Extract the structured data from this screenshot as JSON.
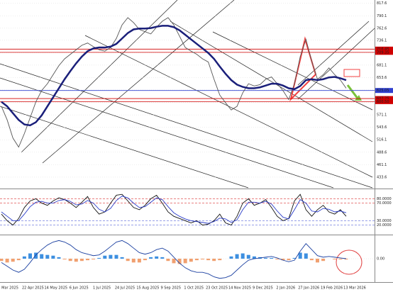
{
  "chart_data": [
    {
      "type": "line",
      "ylim": [
        410,
        825
      ],
      "yticks": [
        817.6,
        790.1,
        762.6,
        736.1,
        708.6,
        681.1,
        653.6,
        626.1,
        598.6,
        571.1,
        543.6,
        516.1,
        488.6,
        461.1,
        433.6
      ],
      "levels": [
        {
          "value": 716.45,
          "label": "716.45",
          "color": "#d00000"
        },
        {
          "value": 709.35,
          "label": "709.35",
          "color": "#d00000"
        },
        {
          "value": 625.05,
          "label": "625.05",
          "color": "#3040d0"
        },
        {
          "value": 607.25,
          "label": "607.25",
          "color": "#d00000"
        },
        {
          "value": 600.5,
          "label": "600.50",
          "color": "#d00000"
        }
      ],
      "series": [
        {
          "color": "#555555",
          "values": [
            590,
            560,
            520,
            500,
            530,
            565,
            600,
            625,
            640,
            660,
            680,
            695,
            705,
            715,
            725,
            730,
            722,
            715,
            712,
            720,
            740,
            770,
            786,
            775,
            760,
            755,
            750,
            765,
            778,
            786,
            770,
            745,
            720,
            712,
            705,
            695,
            688,
            650,
            615,
            598,
            582,
            590,
            620,
            640,
            635,
            638,
            650,
            655,
            640,
            625,
            605,
            640,
            700,
            738,
            690,
            650,
            660,
            675,
            660,
            648,
            630
          ]
        },
        {
          "color": "#1a1f7a",
          "values": [
            600,
            590,
            575,
            560,
            550,
            548,
            555,
            570,
            590,
            610,
            630,
            650,
            668,
            685,
            700,
            712,
            718,
            720,
            720,
            722,
            728,
            740,
            752,
            760,
            762,
            762,
            763,
            766,
            768,
            768,
            765,
            758,
            748,
            738,
            728,
            718,
            708,
            695,
            678,
            662,
            648,
            638,
            633,
            630,
            630,
            632,
            636,
            640,
            640,
            636,
            630,
            628,
            635,
            648,
            650,
            648,
            650,
            654,
            655,
            652,
            648
          ]
        }
      ]
    },
    {
      "type": "line",
      "ylim": [
        0,
        100
      ],
      "yticks": [
        {
          "value": 80,
          "label": "80.0000"
        },
        {
          "value": 70,
          "label": "70.0000"
        },
        {
          "value": 30,
          "label": "30.0000"
        },
        {
          "value": 20,
          "label": "20.0000"
        }
      ],
      "upper_color": "#d00000",
      "lower_color": "#3040d0",
      "series": [
        {
          "color": "#111111",
          "values": [
            45,
            30,
            20,
            35,
            60,
            75,
            80,
            70,
            65,
            75,
            82,
            78,
            70,
            60,
            72,
            85,
            60,
            45,
            50,
            70,
            88,
            90,
            75,
            60,
            55,
            65,
            80,
            88,
            70,
            50,
            40,
            35,
            30,
            25,
            30,
            20,
            22,
            30,
            45,
            25,
            20,
            40,
            70,
            80,
            65,
            70,
            78,
            60,
            40,
            30,
            35,
            75,
            90,
            55,
            40,
            55,
            65,
            50,
            45,
            55,
            40
          ]
        },
        {
          "color": "#2a3cc8",
          "values": [
            50,
            40,
            30,
            30,
            45,
            62,
            72,
            74,
            70,
            70,
            76,
            78,
            74,
            66,
            68,
            76,
            70,
            56,
            50,
            58,
            76,
            86,
            82,
            70,
            60,
            62,
            72,
            82,
            78,
            62,
            48,
            40,
            34,
            30,
            28,
            26,
            24,
            28,
            36,
            34,
            26,
            32,
            55,
            72,
            72,
            70,
            74,
            68,
            52,
            38,
            34,
            55,
            78,
            70,
            52,
            50,
            58,
            56,
            50,
            52,
            48
          ]
        }
      ]
    },
    {
      "type": "macd",
      "ylim": [
        -30,
        30
      ],
      "yticks": [
        {
          "value": 0,
          "label": "0.00"
        }
      ],
      "pos_color": "#3d8fe0",
      "neg_color": "#f0a070",
      "categories": [
        "Mar 2025",
        null,
        null,
        null,
        "22 Apr 2025",
        null,
        null,
        null,
        "14 May 2025",
        null,
        null,
        null,
        "6 Jun 2025",
        null,
        null,
        null,
        "1 Jul 2025",
        null,
        null,
        null,
        "24 Jul 2025",
        null,
        null,
        null,
        "15 Aug 2025",
        null,
        null,
        null,
        "9 Sep 2025",
        null,
        null,
        null,
        "1 Oct 2025",
        null,
        null,
        null,
        "23 Oct 2025",
        null,
        null,
        null,
        "14 Nov 2025",
        null,
        null,
        null,
        "9 Dec 2025",
        null,
        null,
        null,
        "2 Jan 2026",
        null,
        null,
        null,
        "27 Jan 2026",
        null,
        null,
        null,
        "19 Feb 2026",
        null,
        null,
        null,
        "13 Mar 2026"
      ],
      "values": [
        -3,
        -5,
        -4,
        -2,
        3,
        7,
        8,
        6,
        5,
        4,
        2,
        -1,
        -3,
        -4,
        -3,
        -2,
        -1,
        1,
        4,
        5,
        5,
        2,
        -3,
        -5,
        -5,
        -2,
        2,
        3,
        2,
        -3,
        -6,
        -7,
        -6,
        -4,
        -2,
        -1,
        -2,
        -3,
        -2,
        0,
        3,
        6,
        7,
        5,
        3,
        2,
        1,
        1,
        -1,
        -2,
        -2,
        1,
        8,
        7,
        -2,
        -5,
        -3,
        0,
        -1,
        -1,
        -1
      ],
      "series": [
        {
          "color": "#1a3fa0",
          "values": [
            -5,
            -10,
            -15,
            -18,
            -14,
            -5,
            5,
            12,
            18,
            22,
            24,
            22,
            18,
            12,
            8,
            6,
            4,
            5,
            10,
            16,
            22,
            24,
            20,
            14,
            8,
            6,
            8,
            12,
            14,
            10,
            2,
            -6,
            -12,
            -16,
            -18,
            -18,
            -20,
            -24,
            -26,
            -25,
            -22,
            -15,
            -8,
            -2,
            0,
            1,
            2,
            3,
            1,
            -2,
            -4,
            -2,
            10,
            20,
            12,
            4,
            2,
            3,
            2,
            1,
            0
          ]
        }
      ]
    }
  ]
}
